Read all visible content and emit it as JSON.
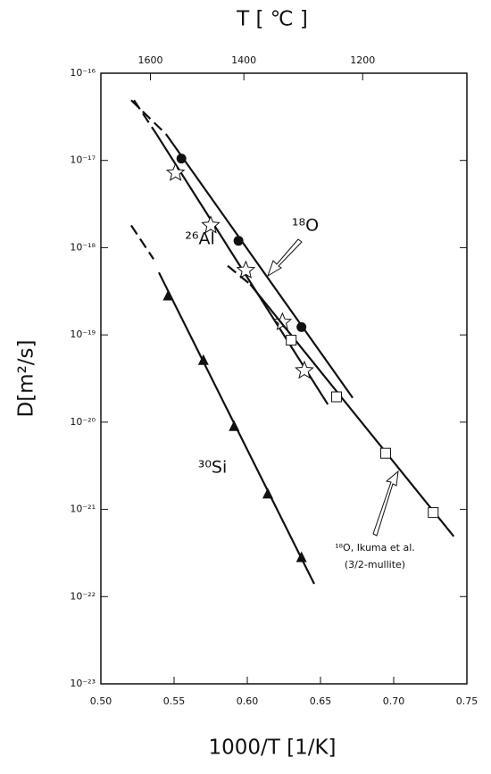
{
  "chart_data": {
    "type": "scatter",
    "x_label": "1000/T [1/K]",
    "y_label": "D[m²/s]",
    "x2_label": "T [ ℃ ]",
    "xlim": [
      0.5,
      0.75
    ],
    "xticks": [
      {
        "value": 0.5,
        "label": "0.50"
      },
      0.55,
      {
        "value": 0.6,
        "label": "0.60"
      },
      0.65,
      {
        "value": 0.7,
        "label": "0.70"
      },
      0.75
    ],
    "x2ticks": [
      1600,
      1400,
      1200
    ],
    "ylog": true,
    "ylim": [
      1e-23,
      1e-16
    ],
    "yticks": [
      {
        "value": 1e-23,
        "label": "10⁻²³"
      },
      {
        "value": 1e-22,
        "label": "10⁻²²"
      },
      {
        "value": 1e-21,
        "label": "10⁻²¹"
      },
      {
        "value": 1e-20,
        "label": "10⁻²⁰"
      },
      {
        "value": 1e-19,
        "label": "10⁻¹⁹"
      },
      {
        "value": 1e-18,
        "label": "10⁻¹⁸"
      },
      {
        "value": 1e-17,
        "label": "10⁻¹⁷"
      },
      {
        "value": 1e-16,
        "label": "10⁻¹⁶"
      }
    ],
    "series": [
      {
        "name": "¹⁸O",
        "marker": "circle",
        "color": "#111111",
        "x": [
          0.555,
          0.594,
          0.637
        ],
        "values": [
          1.05e-17,
          1.2e-18,
          1.23e-19
        ],
        "fit_x": [
          0.5445,
          0.672
        ],
        "fit_values": [
          2e-17,
          1.9e-20
        ],
        "dash_x": [
          0.5207,
          0.5445
        ],
        "dash_values": [
          4.9e-17,
          2e-17
        ]
      },
      {
        "name": "²⁶Al",
        "marker": "star",
        "color": "#111111",
        "x": [
          0.551,
          0.575,
          0.599,
          0.624,
          0.639
        ],
        "values": [
          7.2e-18,
          1.8e-18,
          5.5e-19,
          1.4e-19,
          3.9e-20
        ],
        "fit_x": [
          0.538,
          0.655
        ],
        "fit_values": [
          2e-17,
          1.6e-20
        ],
        "dash_x": [
          0.5226,
          0.538
        ],
        "dash_values": [
          4.9e-17,
          2e-17
        ]
      },
      {
        "name": "¹⁸O, Ikuma et al.",
        "marker": "square",
        "color": "#111111",
        "x": [
          0.63,
          0.661,
          0.6945,
          0.727
        ],
        "values": [
          8.7e-20,
          1.95e-20,
          4.4e-21,
          9.2e-22
        ],
        "fit_x": [
          0.602,
          0.741
        ],
        "fit_values": [
          3.8e-19,
          4.9e-22
        ],
        "dash_x": [
          0.5866,
          0.602
        ],
        "dash_values": [
          6.2e-19,
          3.8e-19
        ]
      },
      {
        "name": "³⁰Si",
        "marker": "triangle",
        "color": "#111111",
        "x": [
          0.546,
          0.57,
          0.591,
          0.614,
          0.637
        ],
        "values": [
          2.8e-19,
          5.1e-20,
          8.9e-21,
          1.5e-21,
          2.8e-22
        ],
        "fit_x": [
          0.5396,
          0.6457
        ],
        "fit_values": [
          5.2e-19,
          1.4e-22
        ],
        "dash_x": [
          0.5207,
          0.536
        ],
        "dash_values": [
          1.8e-18,
          7.4e-19
        ]
      }
    ],
    "annotation": "(3/2-mullite)"
  }
}
